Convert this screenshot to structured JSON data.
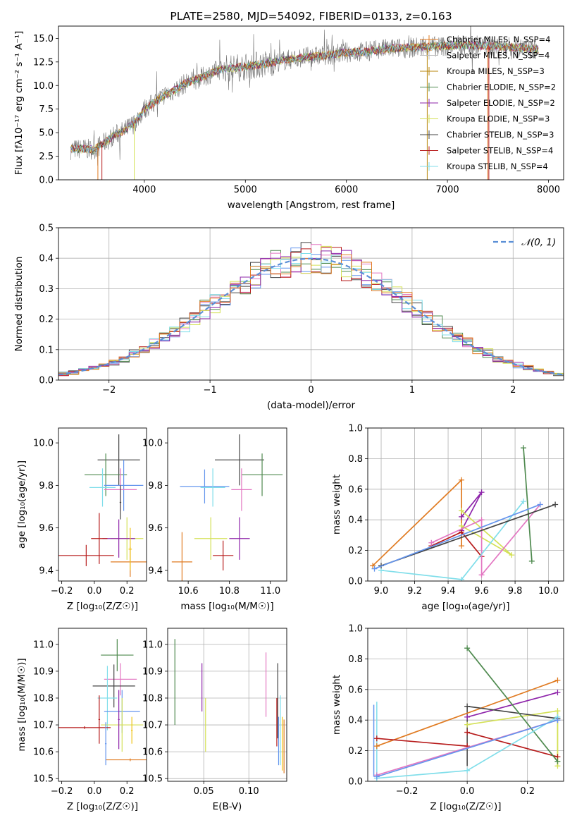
{
  "series_colors": [
    "#e07b22",
    "#bdbdbd",
    "#b8860b",
    "#4f8a4f",
    "#8e24aa",
    "#d4e157",
    "#444444",
    "#b71c1c",
    "#80deea",
    "#6495ed",
    "#e377c2",
    "#f0c419"
  ],
  "chart_data": [
    {
      "type": "line",
      "title": "PLATE=2580, MJD=54092, FIBERID=0133, z=0.163",
      "xlabel": "wavelength [Angstrom, rest frame]",
      "ylabel": "Flux [fλ10⁻¹⁷ erg cm⁻² s⁻¹ A⁻¹]",
      "xlim": [
        3150,
        8150
      ],
      "ylim": [
        0,
        16.3
      ],
      "xticks": [
        "4000",
        "5000",
        "6000",
        "7000",
        "8000"
      ],
      "yticks": [
        "0.0",
        "2.5",
        "5.0",
        "7.5",
        "10.0",
        "12.5",
        "15.0"
      ],
      "grid": false,
      "legend_position": "top-right",
      "continuum": {
        "x": [
          3270,
          3400,
          3500,
          3600,
          3700,
          3800,
          3900,
          4000,
          4100,
          4200,
          4300,
          4400,
          4500,
          4600,
          4700,
          4800,
          5000,
          5200,
          5400,
          5600,
          5800,
          6000,
          6200,
          6400,
          6600,
          6800,
          7000,
          7200,
          7400,
          7600,
          7800,
          7900
        ],
        "y": [
          3.2,
          3.3,
          3.2,
          3.9,
          4.7,
          5.2,
          6.0,
          7.5,
          8.2,
          9.0,
          9.5,
          10.2,
          10.6,
          11.0,
          11.5,
          11.8,
          12.0,
          12.3,
          12.7,
          13.0,
          13.2,
          13.5,
          13.6,
          13.9,
          14.0,
          14.1,
          14.2,
          14.3,
          14.2,
          14.1,
          13.9,
          13.8
        ]
      },
      "legend": [
        "Chabrier MILES, N_SSP=4",
        "Salpeter MILES, N_SSP=4",
        "Kroupa MILES, N_SSP=3",
        "Chabrier ELODIE, N_SSP=2",
        "Salpeter ELODIE, N_SSP=2",
        "Kroupa ELODIE, N_SSP=3",
        "Chabrier STELIB, N_SSP=3",
        "Salpeter STELIB, N_SSP=4",
        "Kroupa STELIB, N_SSP=4"
      ]
    },
    {
      "type": "line",
      "xlabel": "(data-model)/error",
      "ylabel": "Normed distribution",
      "xlim": [
        -2.5,
        2.5
      ],
      "ylim": [
        0,
        0.5
      ],
      "xticks": [
        "−2",
        "−1",
        "0",
        "1",
        "2"
      ],
      "yticks": [
        "0.0",
        "0.1",
        "0.2",
        "0.3",
        "0.4",
        "0.5"
      ],
      "grid": true,
      "legend_position": "top-right",
      "legend": [
        "𝒩(0, 1)"
      ],
      "gaussian": {
        "mean": 0,
        "sigma": 1
      }
    },
    {
      "type": "scatter",
      "xlabel": "Z [log₁₀(Z/Z☉)]",
      "ylabel": "age  [log₁₀(age/yr)]",
      "xlim": [
        -0.22,
        0.32
      ],
      "ylim": [
        9.35,
        10.07
      ],
      "xticks": [
        "−0.2",
        "0.0",
        "0.2"
      ],
      "yticks": [
        "9.4",
        "9.6",
        "9.8",
        "10.0"
      ],
      "grid": false,
      "points": [
        {
          "x": 0.15,
          "y": 9.92,
          "xerr": 0.13,
          "yerr": 0.12,
          "color": 6
        },
        {
          "x": 0.07,
          "y": 9.85,
          "xerr": 0.13,
          "yerr": 0.1,
          "color": 3
        },
        {
          "x": 0.18,
          "y": 9.8,
          "xerr": 0.12,
          "yerr": 0.12,
          "color": 9
        },
        {
          "x": 0.16,
          "y": 9.78,
          "xerr": 0.1,
          "yerr": 0.1,
          "color": 10
        },
        {
          "x": 0.05,
          "y": 9.79,
          "xerr": 0.08,
          "yerr": 0.09,
          "color": 8
        },
        {
          "x": 0.2,
          "y": 9.55,
          "xerr": 0.1,
          "yerr": 0.1,
          "color": 5
        },
        {
          "x": 0.15,
          "y": 9.55,
          "xerr": 0.1,
          "yerr": 0.09,
          "color": 4
        },
        {
          "x": 0.03,
          "y": 9.55,
          "xerr": 0.05,
          "yerr": 0.12,
          "color": 7
        },
        {
          "x": -0.05,
          "y": 9.47,
          "xerr": 0.17,
          "yerr": 0.05,
          "color": 7
        },
        {
          "x": 0.22,
          "y": 9.44,
          "xerr": 0.12,
          "yerr": 0.07,
          "color": 0
        },
        {
          "x": 0.22,
          "y": 9.5,
          "xerr": 0.01,
          "yerr": 0.1,
          "color": 11
        },
        {
          "x": 0.16,
          "y": 9.72,
          "xerr": 0.005,
          "yerr": 0.08,
          "color": 6
        }
      ]
    },
    {
      "type": "scatter",
      "xlabel": "mass [log₁₀(M/M☉)]",
      "ylabel": "",
      "xlim": [
        10.5,
        11.08
      ],
      "ylim": [
        9.35,
        10.07
      ],
      "xticks": [
        "10.6",
        "10.8",
        "11.0"
      ],
      "yticks": [
        "9.4",
        "9.6",
        "9.8",
        "10.0"
      ],
      "grid": false,
      "points": [
        {
          "x": 10.85,
          "y": 9.92,
          "xerr": 0.12,
          "yerr": 0.12,
          "color": 6
        },
        {
          "x": 10.96,
          "y": 9.85,
          "xerr": 0.1,
          "yerr": 0.1,
          "color": 3
        },
        {
          "x": 10.68,
          "y": 9.795,
          "xerr": 0.12,
          "yerr": 0.08,
          "color": 9
        },
        {
          "x": 10.86,
          "y": 9.78,
          "xerr": 0.05,
          "yerr": 0.1,
          "color": 10
        },
        {
          "x": 10.72,
          "y": 9.79,
          "xerr": 0.06,
          "yerr": 0.09,
          "color": 8
        },
        {
          "x": 10.71,
          "y": 9.55,
          "xerr": 0.08,
          "yerr": 0.1,
          "color": 5
        },
        {
          "x": 10.85,
          "y": 9.55,
          "xerr": 0.05,
          "yerr": 0.1,
          "color": 4
        },
        {
          "x": 10.57,
          "y": 9.44,
          "xerr": 0.05,
          "yerr": 0.14,
          "color": 0
        },
        {
          "x": 10.77,
          "y": 9.47,
          "xerr": 0.05,
          "yerr": 0.07,
          "color": 7
        }
      ]
    },
    {
      "type": "line",
      "xlabel": "age  [log₁₀(age/yr)]",
      "ylabel": "mass weight",
      "xlim": [
        8.92,
        10.09
      ],
      "ylim": [
        0,
        1.0
      ],
      "xticks": [
        "9.0",
        "9.2",
        "9.4",
        "9.6",
        "9.8",
        "10.0"
      ],
      "yticks": [
        "0.0",
        "0.2",
        "0.4",
        "0.6",
        "0.8",
        "1.0"
      ],
      "grid": true,
      "series": [
        {
          "color": 0,
          "x": [
            8.95,
            9.48,
            9.48
          ],
          "y": [
            0.1,
            0.66,
            0.23
          ]
        },
        {
          "color": 4,
          "x": [
            9.48,
            9.6,
            9.48
          ],
          "y": [
            0.42,
            0.58,
            0.33
          ]
        },
        {
          "color": 5,
          "x": [
            9.48,
            9.78,
            9.48
          ],
          "y": [
            0.36,
            0.17,
            0.46
          ]
        },
        {
          "color": 7,
          "x": [
            9.3,
            9.48,
            9.6
          ],
          "y": [
            0.23,
            0.32,
            0.16
          ]
        },
        {
          "color": 10,
          "x": [
            9.3,
            9.6,
            9.6,
            9.95
          ],
          "y": [
            0.25,
            0.4,
            0.04,
            0.5
          ]
        },
        {
          "color": 8,
          "x": [
            9.0,
            9.48,
            9.85
          ],
          "y": [
            0.07,
            0.01,
            0.52
          ]
        },
        {
          "color": 3,
          "x": [
            9.85,
            9.9
          ],
          "y": [
            0.87,
            0.13
          ]
        },
        {
          "color": 6,
          "x": [
            9.0,
            10.04
          ],
          "y": [
            0.1,
            0.5
          ]
        },
        {
          "color": 9,
          "x": [
            8.96,
            9.95
          ],
          "y": [
            0.08,
            0.5
          ]
        }
      ]
    },
    {
      "type": "scatter",
      "xlabel": "Z [log₁₀(Z/Z☉)]",
      "ylabel": "mass [log₁₀(M/M☉)]",
      "xlim": [
        -0.22,
        0.32
      ],
      "ylim": [
        10.49,
        11.06
      ],
      "xticks": [
        "−0.2",
        "0.0",
        "0.2"
      ],
      "yticks": [
        "10.5",
        "10.6",
        "10.7",
        "10.8",
        "10.9",
        "11.0"
      ],
      "grid": false,
      "points": [
        {
          "x": 0.14,
          "y": 10.96,
          "xerr": 0.1,
          "yerr": 0.06,
          "color": 3
        },
        {
          "x": 0.16,
          "y": 10.87,
          "xerr": 0.1,
          "yerr": 0.06,
          "color": 10
        },
        {
          "x": 0.12,
          "y": 10.845,
          "xerr": 0.13,
          "yerr": 0.08,
          "color": 6
        },
        {
          "x": 0.08,
          "y": 10.8,
          "xerr": 0.06,
          "yerr": 0.12,
          "color": 8
        },
        {
          "x": 0.17,
          "y": 10.75,
          "xerr": 0.11,
          "yerr": 0.08,
          "color": 9
        },
        {
          "x": 0.17,
          "y": 10.7,
          "xerr": 0.13,
          "yerr": 0.1,
          "color": 5
        },
        {
          "x": 0.15,
          "y": 10.72,
          "xerr": 0.005,
          "yerr": 0.11,
          "color": 4
        },
        {
          "x": 0.03,
          "y": 10.72,
          "xerr": 0.005,
          "yerr": 0.09,
          "color": 7
        },
        {
          "x": -0.06,
          "y": 10.69,
          "xerr": 0.16,
          "yerr": 0.005,
          "color": 7
        },
        {
          "x": 0.22,
          "y": 10.57,
          "xerr": 0.15,
          "yerr": 0.005,
          "color": 0
        },
        {
          "x": 0.23,
          "y": 10.68,
          "xerr": 0.005,
          "yerr": 0.05,
          "color": 11
        },
        {
          "x": 0.07,
          "y": 10.63,
          "xerr": 0.005,
          "yerr": 0.08,
          "color": 9
        }
      ]
    },
    {
      "type": "scatter",
      "xlabel": "E(B-V)",
      "ylabel": "",
      "xlim": [
        0.01,
        0.142
      ],
      "ylim": [
        10.49,
        11.06
      ],
      "xticks": [
        "0.05",
        "0.10"
      ],
      "yticks": [
        "10.5",
        "10.6",
        "10.7",
        "10.8",
        "10.9",
        "11.0"
      ],
      "grid": true,
      "points": [
        {
          "x": 0.018,
          "y": 10.86,
          "xerr": 0,
          "yerr": 0.16,
          "color": 3
        },
        {
          "x": 0.048,
          "y": 10.84,
          "xerr": 0,
          "yerr": 0.09,
          "color": 4
        },
        {
          "x": 0.052,
          "y": 10.7,
          "xerr": 0,
          "yerr": 0.1,
          "color": 5
        },
        {
          "x": 0.119,
          "y": 10.85,
          "xerr": 0,
          "yerr": 0.12,
          "color": 10
        },
        {
          "x": 0.132,
          "y": 10.79,
          "xerr": 0,
          "yerr": 0.14,
          "color": 6
        },
        {
          "x": 0.131,
          "y": 10.71,
          "xerr": 0,
          "yerr": 0.09,
          "color": 7
        },
        {
          "x": 0.135,
          "y": 10.68,
          "xerr": 0,
          "yerr": 0.13,
          "color": 8
        },
        {
          "x": 0.133,
          "y": 10.64,
          "xerr": 0,
          "yerr": 0.09,
          "color": 9
        },
        {
          "x": 0.137,
          "y": 10.63,
          "xerr": 0,
          "yerr": 0.1,
          "color": 11
        },
        {
          "x": 0.139,
          "y": 10.62,
          "xerr": 0,
          "yerr": 0.1,
          "color": 0
        }
      ]
    },
    {
      "type": "line",
      "xlabel": "Z [log₁₀(Z/Z☉)]",
      "ylabel": "mass weight",
      "xlim": [
        -0.33,
        0.32
      ],
      "ylim": [
        0,
        1.0
      ],
      "xticks": [
        "−0.2",
        "0.0",
        "0.2"
      ],
      "yticks": [
        "0.0",
        "0.2",
        "0.4",
        "0.6",
        "0.8",
        "1.0"
      ],
      "grid": true,
      "series": [
        {
          "color": 0,
          "x": [
            -0.3,
            0.3
          ],
          "y": [
            0.23,
            0.66
          ]
        },
        {
          "color": 4,
          "x": [
            0.0,
            0.3
          ],
          "y": [
            0.42,
            0.58
          ]
        },
        {
          "color": 5,
          "x": [
            0.0,
            0.3,
            0.3
          ],
          "y": [
            0.37,
            0.46,
            0.1
          ]
        },
        {
          "color": 7,
          "x": [
            -0.3,
            0.0
          ],
          "y": [
            0.28,
            0.23
          ]
        },
        {
          "color": 7,
          "x": [
            0.0,
            0.3
          ],
          "y": [
            0.32,
            0.16
          ]
        },
        {
          "color": 6,
          "x": [
            0.0,
            0.3
          ],
          "y": [
            0.49,
            0.41
          ]
        },
        {
          "color": 3,
          "x": [
            0.0,
            0.3
          ],
          "y": [
            0.87,
            0.13
          ]
        },
        {
          "color": 10,
          "x": [
            -0.3,
            0.3
          ],
          "y": [
            0.04,
            0.4
          ]
        },
        {
          "color": 8,
          "x": [
            -0.3,
            0.0,
            0.3
          ],
          "y": [
            0.02,
            0.07,
            0.42
          ]
        },
        {
          "color": 9,
          "x": [
            -0.3,
            0.3
          ],
          "y": [
            0.03,
            0.4
          ]
        }
      ],
      "vlines": [
        {
          "color": 8,
          "x": -0.3,
          "y": [
            0.02,
            0.52
          ]
        },
        {
          "color": 9,
          "x": -0.31,
          "y": [
            0.03,
            0.5
          ]
        },
        {
          "color": 6,
          "x": 0.0,
          "y": [
            0.1,
            0.49
          ]
        },
        {
          "color": 5,
          "x": 0.3,
          "y": [
            0.1,
            0.46
          ]
        }
      ]
    }
  ]
}
